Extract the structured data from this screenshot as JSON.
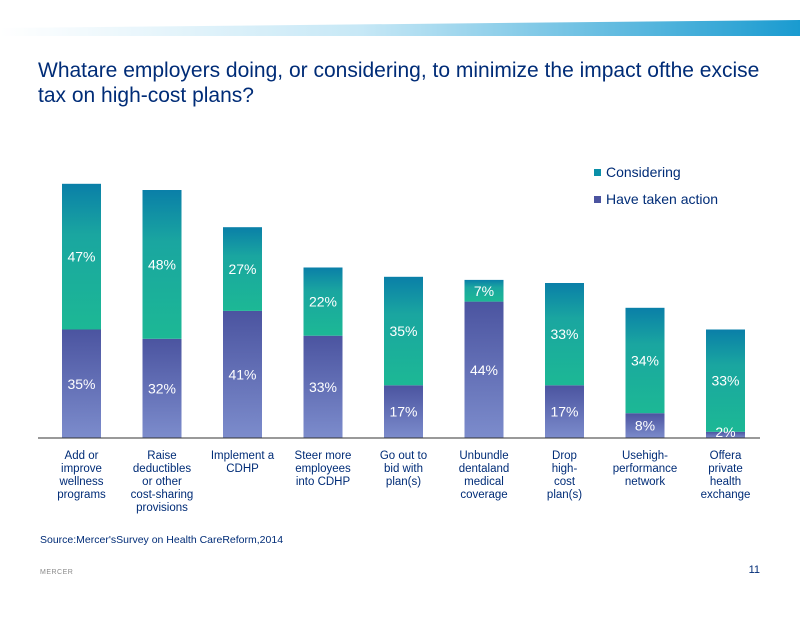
{
  "slide": {
    "title": "Whatare employers doing, or considering, to minimize the impact ofthe excise tax on high-cost plans?",
    "source": "Source:Mercer'sSurvey on Health CareReform,2014",
    "brand": "MERCER",
    "page_number": "11"
  },
  "colors": {
    "considering_top": "#0a7fa8",
    "considering_bottom": "#1cb895",
    "action_top": "#4b54a0",
    "action_bottom": "#7c8ccc",
    "title": "#002c77",
    "header_band": "#1a9bd0"
  },
  "chart_data": {
    "type": "bar",
    "stacked": true,
    "categories": [
      "Add or improve wellness programs",
      "Raise deductibles or other cost-sharing provisions",
      "Implement a CDHP",
      "Steer more employees into CDHP",
      "Go out to bid with plan(s)",
      "Unbundle dentaland medical coverage",
      "Drop high-cost plan(s)",
      "Usehigh-performance network",
      "Offera private health exchange"
    ],
    "category_lines": [
      [
        "Add or",
        "improve",
        "wellness",
        "programs"
      ],
      [
        "Raise",
        "deductibles",
        "or other",
        "cost-sharing",
        "provisions"
      ],
      [
        "Implement a",
        "CDHP"
      ],
      [
        "Steer more",
        "employees",
        "into CDHP"
      ],
      [
        "Go out to",
        "bid with",
        "plan(s)"
      ],
      [
        "Unbundle",
        "dentaland",
        "medical",
        "coverage"
      ],
      [
        "Drop",
        "high-",
        "cost",
        "plan(s)"
      ],
      [
        "Usehigh-",
        "performance",
        "network"
      ],
      [
        "Offera",
        "private",
        "health",
        "exchange"
      ]
    ],
    "series": [
      {
        "name": "Have taken action",
        "values": [
          35,
          32,
          41,
          33,
          17,
          44,
          17,
          8,
          2
        ],
        "labels": [
          "35%",
          "32%",
          "41%",
          "33%",
          "17%",
          "44%",
          "17%",
          "8%",
          "2%"
        ]
      },
      {
        "name": "Considering",
        "values": [
          47,
          48,
          27,
          22,
          35,
          7,
          33,
          34,
          33
        ],
        "labels": [
          "47%",
          "48%",
          "27%",
          "22%",
          "35%",
          "7%",
          "33%",
          "34%",
          "33%"
        ]
      }
    ],
    "legend": [
      "Considering",
      "Have taken action"
    ],
    "legend_position": "top-right",
    "ylim": [
      0,
      90
    ],
    "grid": false
  }
}
